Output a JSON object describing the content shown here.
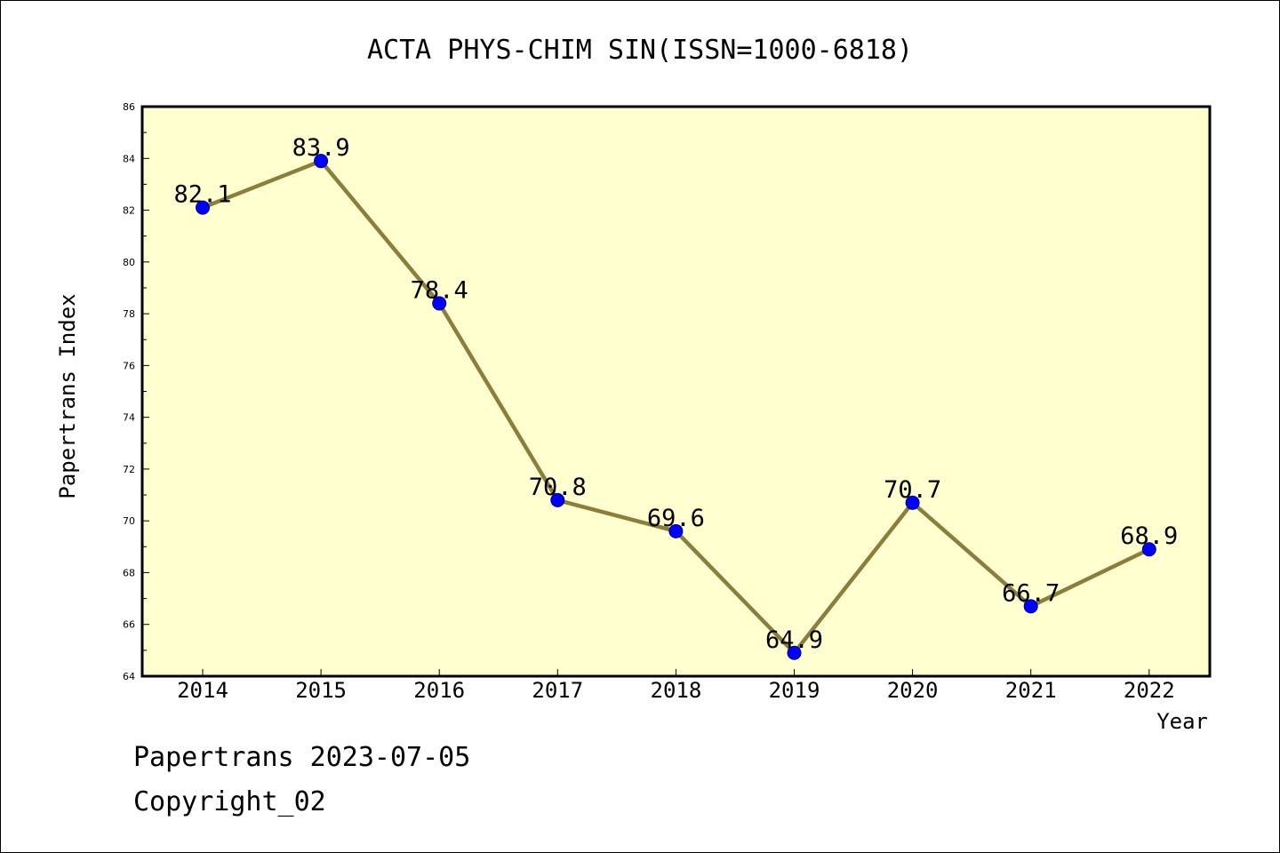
{
  "chart_data": {
    "type": "line",
    "title": "ACTA PHYS-CHIM SIN(ISSN=1000-6818)",
    "xlabel": "Year",
    "ylabel": "Papertrans Index",
    "categories": [
      "2014",
      "2015",
      "2016",
      "2017",
      "2018",
      "2019",
      "2020",
      "2021",
      "2022"
    ],
    "series": [
      {
        "values": [
          82.1,
          83.9,
          78.4,
          70.8,
          69.6,
          64.9,
          70.7,
          66.7,
          68.9
        ],
        "data_labels": [
          "82.1",
          "83.9",
          "78.4",
          "70.8",
          "69.6",
          "64.9",
          "70.7",
          "66.7",
          "68.9"
        ]
      }
    ],
    "ylim": [
      64,
      86
    ],
    "y_ticks": [
      "64",
      "66",
      "68",
      "70",
      "72",
      "74",
      "76",
      "78",
      "80",
      "82",
      "84",
      "86"
    ],
    "grid": false,
    "colors": {
      "plot_background": "#ffffd0",
      "line": "#8b7d3a",
      "marker": "#0000ff",
      "marker_edge": "#000080"
    }
  },
  "footer": {
    "line1": "Papertrans 2023-07-05",
    "line2": "Copyright_02"
  }
}
